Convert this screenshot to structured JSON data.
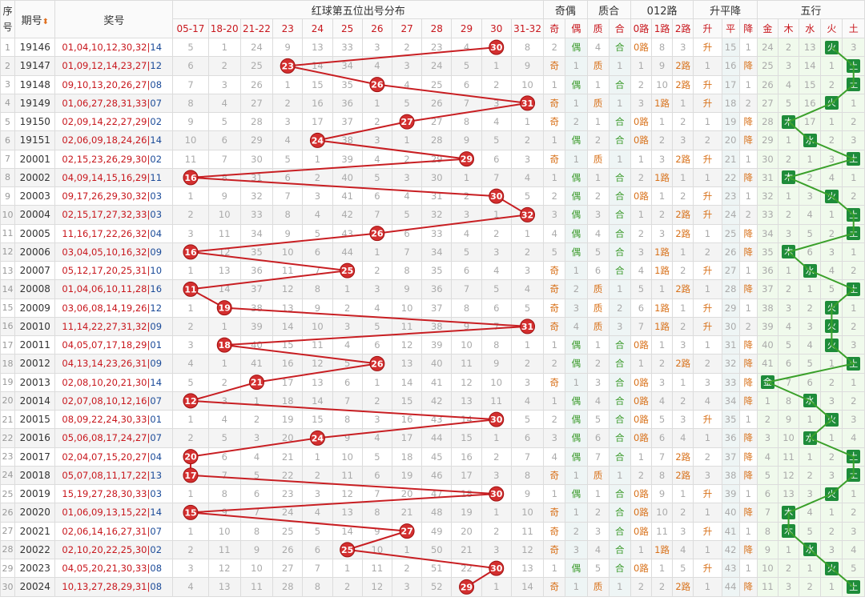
{
  "header": {
    "seq": "序号",
    "period": "期号",
    "draw": "奖号",
    "red5_group": "红球第五位出号分布",
    "parity_group": "奇偶",
    "prime_group": "质合",
    "mod_group": "012路",
    "trend_group": "升平降",
    "wx_group": "五行",
    "red5_cols": [
      "05-17",
      "18-20",
      "21-22",
      "23",
      "24",
      "25",
      "26",
      "27",
      "28",
      "29",
      "30",
      "31-32"
    ],
    "parity_cols": [
      "奇",
      "偶"
    ],
    "prime_cols": [
      "质",
      "合"
    ],
    "mod_cols": [
      "0路",
      "1路",
      "2路"
    ],
    "trend_cols": [
      "升",
      "平",
      "降"
    ],
    "wx_cols": [
      "金",
      "木",
      "水",
      "火",
      "土"
    ]
  },
  "rows": [
    {
      "seq": "1",
      "period": "19146",
      "nums": "01,04,10,12,30,32",
      "blue": "14",
      "red": [
        5,
        1,
        24,
        9,
        13,
        33,
        3,
        2,
        23,
        4,
        "30",
        8
      ],
      "eo": [
        2,
        "偶"
      ],
      "pc": [
        4,
        "合"
      ],
      "mod": [
        "0路",
        8,
        3
      ],
      "ud": [
        "升",
        15,
        1
      ],
      "wx": [
        24,
        2,
        13,
        "火",
        3
      ]
    },
    {
      "seq": "2",
      "period": "19147",
      "nums": "01,09,12,14,23,27",
      "blue": "12",
      "red": [
        6,
        2,
        25,
        "23",
        14,
        34,
        4,
        3,
        24,
        5,
        1,
        9
      ],
      "eo": [
        "奇",
        1
      ],
      "pc": [
        "质",
        1
      ],
      "mod": [
        1,
        9,
        "2路"
      ],
      "ud": [
        1,
        16,
        "降"
      ],
      "wx": [
        25,
        3,
        14,
        1,
        "土"
      ]
    },
    {
      "seq": "3",
      "period": "19148",
      "nums": "09,10,13,20,26,27",
      "blue": "08",
      "red": [
        7,
        3,
        26,
        1,
        15,
        35,
        "26",
        4,
        25,
        6,
        2,
        10
      ],
      "eo": [
        1,
        "偶"
      ],
      "pc": [
        1,
        "合"
      ],
      "mod": [
        2,
        10,
        "2路"
      ],
      "ud": [
        "升",
        17,
        1
      ],
      "wx": [
        26,
        4,
        15,
        2,
        "土"
      ]
    },
    {
      "seq": "4",
      "period": "19149",
      "nums": "01,06,27,28,31,33",
      "blue": "07",
      "red": [
        8,
        4,
        27,
        2,
        16,
        36,
        1,
        5,
        26,
        7,
        3,
        "31"
      ],
      "eo": [
        "奇",
        1
      ],
      "pc": [
        "质",
        1
      ],
      "mod": [
        3,
        "1路",
        1
      ],
      "ud": [
        "升",
        18,
        2
      ],
      "wx": [
        27,
        5,
        16,
        "火",
        1
      ]
    },
    {
      "seq": "5",
      "period": "19150",
      "nums": "02,09,14,22,27,29",
      "blue": "02",
      "red": [
        9,
        5,
        28,
        3,
        17,
        37,
        2,
        "27",
        27,
        8,
        4,
        1
      ],
      "eo": [
        "奇",
        2
      ],
      "pc": [
        1,
        "合"
      ],
      "mod": [
        "0路",
        1,
        2
      ],
      "ud": [
        1,
        19,
        "降"
      ],
      "wx": [
        28,
        "木",
        17,
        1,
        2
      ]
    },
    {
      "seq": "6",
      "period": "19151",
      "nums": "02,06,09,18,24,26",
      "blue": "14",
      "red": [
        10,
        6,
        29,
        4,
        "24",
        38,
        3,
        1,
        28,
        9,
        5,
        2
      ],
      "eo": [
        1,
        "偶"
      ],
      "pc": [
        2,
        "合"
      ],
      "mod": [
        "0路",
        2,
        3
      ],
      "ud": [
        2,
        20,
        "降"
      ],
      "wx": [
        29,
        1,
        "水",
        2,
        3
      ]
    },
    {
      "seq": "7",
      "period": "20001",
      "nums": "02,15,23,26,29,30",
      "blue": "02",
      "red": [
        11,
        7,
        30,
        5,
        1,
        39,
        4,
        2,
        29,
        "29",
        6,
        3
      ],
      "eo": [
        "奇",
        1
      ],
      "pc": [
        "质",
        1
      ],
      "mod": [
        1,
        3,
        "2路"
      ],
      "ud": [
        "升",
        21,
        1
      ],
      "wx": [
        30,
        2,
        1,
        3,
        "土"
      ]
    },
    {
      "seq": "8",
      "period": "20002",
      "nums": "04,09,14,15,16,29",
      "blue": "11",
      "red": [
        "16",
        8,
        31,
        6,
        2,
        40,
        5,
        3,
        30,
        1,
        7,
        4
      ],
      "eo": [
        1,
        "偶"
      ],
      "pc": [
        1,
        "合"
      ],
      "mod": [
        2,
        "1路",
        1
      ],
      "ud": [
        1,
        22,
        "降"
      ],
      "wx": [
        31,
        "木",
        2,
        4,
        1
      ]
    },
    {
      "seq": "9",
      "period": "20003",
      "nums": "09,17,26,29,30,32",
      "blue": "03",
      "red": [
        1,
        9,
        32,
        7,
        3,
        41,
        6,
        4,
        31,
        2,
        "30",
        5
      ],
      "eo": [
        2,
        "偶"
      ],
      "pc": [
        2,
        "合"
      ],
      "mod": [
        "0路",
        1,
        2
      ],
      "ud": [
        "升",
        23,
        1
      ],
      "wx": [
        32,
        1,
        3,
        "火",
        2
      ]
    },
    {
      "seq": "10",
      "period": "20004",
      "nums": "02,15,17,27,32,33",
      "blue": "03",
      "red": [
        2,
        10,
        33,
        8,
        4,
        42,
        7,
        5,
        32,
        3,
        1,
        "32"
      ],
      "eo": [
        3,
        "偶"
      ],
      "pc": [
        3,
        "合"
      ],
      "mod": [
        1,
        2,
        "2路"
      ],
      "ud": [
        "升",
        24,
        2
      ],
      "wx": [
        33,
        2,
        4,
        1,
        "土"
      ]
    },
    {
      "seq": "11",
      "period": "20005",
      "nums": "11,16,17,22,26,32",
      "blue": "04",
      "red": [
        3,
        11,
        34,
        9,
        5,
        43,
        "26",
        6,
        33,
        4,
        2,
        1
      ],
      "eo": [
        4,
        "偶"
      ],
      "pc": [
        4,
        "合"
      ],
      "mod": [
        2,
        3,
        "2路"
      ],
      "ud": [
        1,
        25,
        "降"
      ],
      "wx": [
        34,
        3,
        5,
        2,
        "土"
      ]
    },
    {
      "seq": "12",
      "period": "20006",
      "nums": "03,04,05,10,16,32",
      "blue": "09",
      "red": [
        "16",
        12,
        35,
        10,
        6,
        44,
        1,
        7,
        34,
        5,
        3,
        2
      ],
      "eo": [
        5,
        "偶"
      ],
      "pc": [
        5,
        "合"
      ],
      "mod": [
        3,
        "1路",
        1
      ],
      "ud": [
        2,
        26,
        "降"
      ],
      "wx": [
        35,
        "木",
        6,
        3,
        1
      ]
    },
    {
      "seq": "13",
      "period": "20007",
      "nums": "05,12,17,20,25,31",
      "blue": "10",
      "red": [
        1,
        13,
        36,
        11,
        7,
        "25",
        2,
        8,
        35,
        6,
        4,
        3
      ],
      "eo": [
        "奇",
        1
      ],
      "pc": [
        6,
        "合"
      ],
      "mod": [
        4,
        "1路",
        2
      ],
      "ud": [
        "升",
        27,
        1
      ],
      "wx": [
        36,
        1,
        "水",
        4,
        2
      ]
    },
    {
      "seq": "14",
      "period": "20008",
      "nums": "01,04,06,10,11,28",
      "blue": "16",
      "red": [
        "11",
        14,
        37,
        12,
        8,
        1,
        3,
        9,
        36,
        7,
        5,
        4
      ],
      "eo": [
        "奇",
        2
      ],
      "pc": [
        "质",
        1
      ],
      "mod": [
        5,
        1,
        "2路"
      ],
      "ud": [
        1,
        28,
        "降"
      ],
      "wx": [
        37,
        2,
        1,
        5,
        "土"
      ]
    },
    {
      "seq": "15",
      "period": "20009",
      "nums": "03,06,08,14,19,26",
      "blue": "12",
      "red": [
        1,
        "19",
        38,
        13,
        9,
        2,
        4,
        10,
        37,
        8,
        6,
        5
      ],
      "eo": [
        "奇",
        3
      ],
      "pc": [
        "质",
        2
      ],
      "mod": [
        6,
        "1路",
        1
      ],
      "ud": [
        "升",
        29,
        1
      ],
      "wx": [
        38,
        3,
        2,
        "火",
        1
      ]
    },
    {
      "seq": "16",
      "period": "20010",
      "nums": "11,14,22,27,31,32",
      "blue": "09",
      "red": [
        2,
        1,
        39,
        14,
        10,
        3,
        5,
        11,
        38,
        9,
        7,
        "31"
      ],
      "eo": [
        "奇",
        4
      ],
      "pc": [
        "质",
        3
      ],
      "mod": [
        7,
        "1路",
        2
      ],
      "ud": [
        "升",
        30,
        2
      ],
      "wx": [
        39,
        4,
        3,
        "火",
        2
      ]
    },
    {
      "seq": "17",
      "period": "20011",
      "nums": "04,05,07,17,18,29",
      "blue": "01",
      "red": [
        3,
        "18",
        40,
        15,
        11,
        4,
        6,
        12,
        39,
        10,
        8,
        1
      ],
      "eo": [
        1,
        "偶"
      ],
      "pc": [
        1,
        "合"
      ],
      "mod": [
        "0路",
        1,
        3
      ],
      "ud": [
        1,
        31,
        "降"
      ],
      "wx": [
        40,
        5,
        4,
        "火",
        3
      ]
    },
    {
      "seq": "18",
      "period": "20012",
      "nums": "04,13,14,23,26,31",
      "blue": "09",
      "red": [
        4,
        1,
        41,
        16,
        12,
        5,
        "26",
        13,
        40,
        11,
        9,
        2
      ],
      "eo": [
        2,
        "偶"
      ],
      "pc": [
        2,
        "合"
      ],
      "mod": [
        1,
        2,
        "2路"
      ],
      "ud": [
        2,
        32,
        "降"
      ],
      "wx": [
        41,
        6,
        5,
        1,
        "土"
      ]
    },
    {
      "seq": "19",
      "period": "20013",
      "nums": "02,08,10,20,21,30",
      "blue": "14",
      "red": [
        5,
        2,
        "21",
        17,
        13,
        6,
        1,
        14,
        41,
        12,
        10,
        3
      ],
      "eo": [
        "奇",
        1
      ],
      "pc": [
        3,
        "合"
      ],
      "mod": [
        "0路",
        3,
        1
      ],
      "ud": [
        3,
        33,
        "降"
      ],
      "wx": [
        "金",
        7,
        6,
        2,
        1
      ]
    },
    {
      "seq": "20",
      "period": "20014",
      "nums": "02,07,08,10,12,16",
      "blue": "07",
      "red": [
        "12",
        3,
        1,
        18,
        14,
        7,
        2,
        15,
        42,
        13,
        11,
        4
      ],
      "eo": [
        1,
        "偶"
      ],
      "pc": [
        4,
        "合"
      ],
      "mod": [
        "0路",
        4,
        2
      ],
      "ud": [
        4,
        34,
        "降"
      ],
      "wx": [
        1,
        8,
        "水",
        3,
        2
      ]
    },
    {
      "seq": "21",
      "period": "20015",
      "nums": "08,09,22,24,30,33",
      "blue": "01",
      "red": [
        1,
        4,
        2,
        19,
        15,
        8,
        3,
        16,
        43,
        14,
        "30",
        5
      ],
      "eo": [
        2,
        "偶"
      ],
      "pc": [
        5,
        "合"
      ],
      "mod": [
        "0路",
        5,
        3
      ],
      "ud": [
        "升",
        35,
        1
      ],
      "wx": [
        2,
        9,
        1,
        "火",
        3
      ]
    },
    {
      "seq": "22",
      "period": "20016",
      "nums": "05,06,08,17,24,27",
      "blue": "07",
      "red": [
        2,
        5,
        3,
        20,
        "24",
        9,
        4,
        17,
        44,
        15,
        1,
        6
      ],
      "eo": [
        3,
        "偶"
      ],
      "pc": [
        6,
        "合"
      ],
      "mod": [
        "0路",
        6,
        4
      ],
      "ud": [
        1,
        36,
        "降"
      ],
      "wx": [
        3,
        10,
        "水",
        1,
        4
      ]
    },
    {
      "seq": "23",
      "period": "20017",
      "nums": "02,04,07,15,20,27",
      "blue": "04",
      "red": [
        "20",
        6,
        4,
        21,
        1,
        10,
        5,
        18,
        45,
        16,
        2,
        7
      ],
      "eo": [
        4,
        "偶"
      ],
      "pc": [
        7,
        "合"
      ],
      "mod": [
        1,
        7,
        "2路"
      ],
      "ud": [
        2,
        37,
        "降"
      ],
      "wx": [
        4,
        11,
        1,
        2,
        "土"
      ]
    },
    {
      "seq": "24",
      "period": "20018",
      "nums": "05,07,08,11,17,22",
      "blue": "13",
      "red": [
        "17",
        7,
        5,
        22,
        2,
        11,
        6,
        19,
        46,
        17,
        3,
        8
      ],
      "eo": [
        "奇",
        1
      ],
      "pc": [
        "质",
        1
      ],
      "mod": [
        2,
        8,
        "2路"
      ],
      "ud": [
        3,
        38,
        "降"
      ],
      "wx": [
        5,
        12,
        2,
        3,
        "土"
      ]
    },
    {
      "seq": "25",
      "period": "20019",
      "nums": "15,19,27,28,30,33",
      "blue": "03",
      "red": [
        1,
        8,
        6,
        23,
        3,
        12,
        7,
        20,
        47,
        18,
        "30",
        9
      ],
      "eo": [
        1,
        "偶"
      ],
      "pc": [
        1,
        "合"
      ],
      "mod": [
        "0路",
        9,
        1
      ],
      "ud": [
        "升",
        39,
        1
      ],
      "wx": [
        6,
        13,
        3,
        "火",
        1
      ]
    },
    {
      "seq": "26",
      "period": "20020",
      "nums": "01,06,09,13,15,22",
      "blue": "14",
      "red": [
        "15",
        9,
        7,
        24,
        4,
        13,
        8,
        21,
        48,
        19,
        1,
        10
      ],
      "eo": [
        "奇",
        1
      ],
      "pc": [
        2,
        "合"
      ],
      "mod": [
        "0路",
        10,
        2
      ],
      "ud": [
        1,
        40,
        "降"
      ],
      "wx": [
        7,
        "木",
        4,
        1,
        2
      ]
    },
    {
      "seq": "27",
      "period": "20021",
      "nums": "02,06,14,16,27,31",
      "blue": "07",
      "red": [
        1,
        10,
        8,
        25,
        5,
        14,
        9,
        "27",
        49,
        20,
        2,
        11
      ],
      "eo": [
        "奇",
        2
      ],
      "pc": [
        3,
        "合"
      ],
      "mod": [
        "0路",
        11,
        3
      ],
      "ud": [
        "升",
        41,
        1
      ],
      "wx": [
        8,
        "木",
        5,
        2,
        3
      ]
    },
    {
      "seq": "28",
      "period": "20022",
      "nums": "02,10,20,22,25,30",
      "blue": "02",
      "red": [
        2,
        11,
        9,
        26,
        6,
        "25",
        10,
        1,
        50,
        21,
        3,
        12
      ],
      "eo": [
        "奇",
        3
      ],
      "pc": [
        4,
        "合"
      ],
      "mod": [
        1,
        "1路",
        4
      ],
      "ud": [
        1,
        42,
        "降"
      ],
      "wx": [
        9,
        1,
        "水",
        3,
        4
      ]
    },
    {
      "seq": "29",
      "period": "20023",
      "nums": "04,05,20,21,30,33",
      "blue": "08",
      "red": [
        3,
        12,
        10,
        27,
        7,
        1,
        11,
        2,
        51,
        22,
        "30",
        13
      ],
      "eo": [
        1,
        "偶"
      ],
      "pc": [
        5,
        "合"
      ],
      "mod": [
        "0路",
        1,
        5
      ],
      "ud": [
        "升",
        43,
        1
      ],
      "wx": [
        10,
        2,
        1,
        "火",
        5
      ]
    },
    {
      "seq": "30",
      "period": "20024",
      "nums": "10,13,27,28,29,31",
      "blue": "08",
      "red": [
        4,
        13,
        11,
        28,
        8,
        2,
        12,
        3,
        52,
        "29",
        1,
        14
      ],
      "eo": [
        "奇",
        1
      ],
      "pc": [
        "质",
        1
      ],
      "mod": [
        2,
        2,
        "2路"
      ],
      "ud": [
        1,
        44,
        "降"
      ],
      "wx": [
        11,
        3,
        2,
        1,
        "土"
      ]
    }
  ],
  "colors": {
    "red_ball": "#d32f2f",
    "line": "#c81e22",
    "wx_badge": "#1e8c3a",
    "wx_line": "#3aa02a"
  }
}
